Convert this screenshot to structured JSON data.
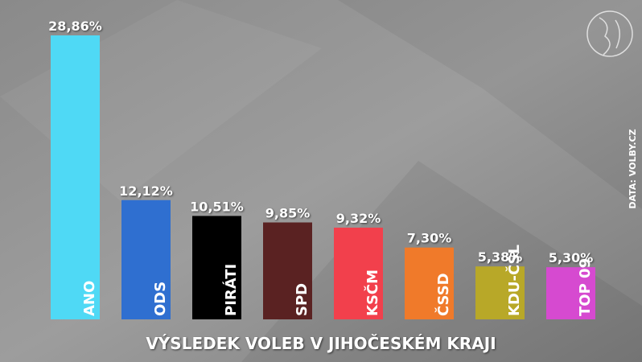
{
  "chart_data": {
    "type": "bar",
    "title": "VÝSLEDEK VOLEB V JIHOČESKÉM KRAJI",
    "source": "DATA: VOLBY.CZ",
    "categories": [
      "ANO",
      "ODS",
      "PIRÁTI",
      "SPD",
      "KSČM",
      "ČSSD",
      "KDU-ČSL",
      "TOP 09"
    ],
    "values": [
      28.86,
      12.12,
      10.51,
      9.85,
      9.32,
      7.3,
      5.38,
      5.3
    ],
    "value_labels": [
      "28,86%",
      "12,12%",
      "10,51%",
      "9,85%",
      "9,32%",
      "7,30%",
      "5,38%",
      "5,30%"
    ],
    "colors": [
      "#4fd9f5",
      "#2f6fd0",
      "#000000",
      "#5a2222",
      "#f2404c",
      "#f07a2a",
      "#b8a828",
      "#d64ad0"
    ]
  }
}
